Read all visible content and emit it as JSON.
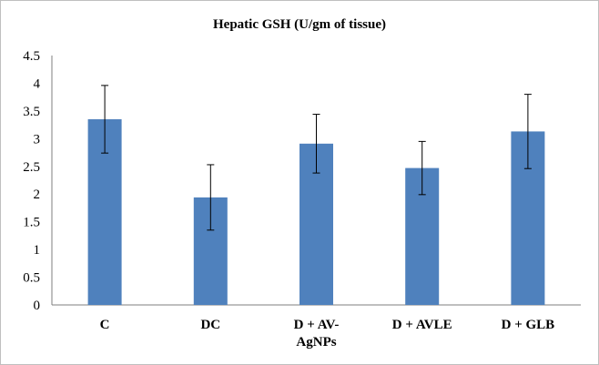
{
  "chart_data": {
    "type": "bar",
    "title": "Hepatic GSH (U/gm of tissue)",
    "xlabel": "",
    "ylabel": "",
    "categories": [
      [
        "C"
      ],
      [
        "DC"
      ],
      [
        "D + AV-",
        "AgNPs"
      ],
      [
        "D + AVLE"
      ],
      [
        "D + GLB"
      ]
    ],
    "series": [
      {
        "values": [
          3.35,
          1.94,
          2.91,
          2.47,
          3.13
        ],
        "error": [
          0.61,
          0.59,
          0.53,
          0.48,
          0.67
        ]
      }
    ],
    "ylim": [
      0,
      4.5
    ],
    "yticks": [
      "0",
      "0.5",
      "1",
      "1.5",
      "2",
      "2.5",
      "3",
      "3.5",
      "4",
      "4.5"
    ],
    "grid": false,
    "legend": "none",
    "bar_color": "#4f81bd",
    "error_bar_color": "#000000"
  }
}
